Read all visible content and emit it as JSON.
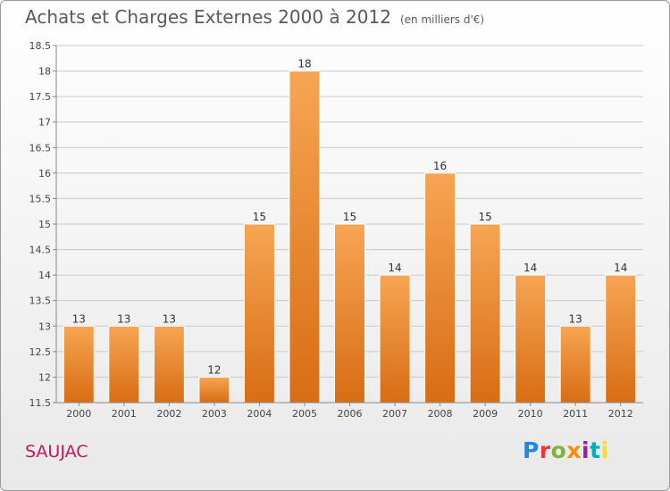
{
  "title": "Achats et Charges Externes 2000 à 2012",
  "unit": "(en milliers d'€)",
  "place": "SAUJAC",
  "logo": "Proxiti",
  "colors": {
    "bar_light": "#f7a553",
    "bar_dark": "#d86d14",
    "grid": "#c8c8c8",
    "place": "#c2185b"
  },
  "chart_data": {
    "type": "bar",
    "title": "Achats et Charges Externes 2000 à 2012",
    "subtitle": "(en milliers d'€)",
    "xlabel": "",
    "ylabel": "",
    "categories": [
      "2000",
      "2001",
      "2002",
      "2003",
      "2004",
      "2005",
      "2006",
      "2007",
      "2008",
      "2009",
      "2010",
      "2011",
      "2012"
    ],
    "values": [
      13,
      13,
      13,
      12,
      15,
      18,
      15,
      14,
      16,
      15,
      14,
      13,
      14
    ],
    "data_labels": [
      "13",
      "13",
      "13",
      "12",
      "15",
      "18",
      "15",
      "14",
      "16",
      "15",
      "14",
      "13",
      "14"
    ],
    "ylim": [
      11.5,
      18.5
    ],
    "yticks": [
      11.5,
      12,
      12.5,
      13,
      13.5,
      14,
      14.5,
      15,
      15.5,
      16,
      16.5,
      17,
      17.5,
      18,
      18.5
    ],
    "ytick_labels": [
      "11.5",
      "12",
      "12.5",
      "13",
      "13.5",
      "14",
      "14.5",
      "15",
      "15.5",
      "16",
      "16.5",
      "17",
      "17.5",
      "18",
      "18.5"
    ],
    "grid": true,
    "legend": "none"
  }
}
